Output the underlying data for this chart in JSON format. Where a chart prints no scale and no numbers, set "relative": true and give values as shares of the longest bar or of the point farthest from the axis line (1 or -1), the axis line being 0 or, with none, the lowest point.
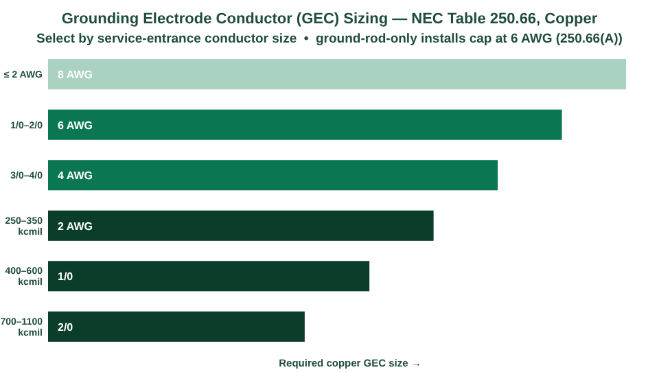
{
  "chart_data": {
    "type": "bar",
    "orientation": "horizontal",
    "relative": true,
    "title": "Grounding Electrode Conductor (GEC) Sizing — NEC Table 250.66, Copper",
    "subtitle": "Select by service-entrance conductor size  •  ground-rod-only installs cap at 6 AWG (250.66(A))",
    "xlabel": "Required copper GEC size →",
    "categories": [
      "≤ 2 AWG",
      "1/0–2/0",
      "3/0–4/0",
      "250–350 kcmil",
      "400–600 kcmil",
      "700–1100 kcmil"
    ],
    "values": [
      1,
      0.889,
      0.778,
      0.667,
      0.556,
      0.444
    ],
    "annotations": [
      "8 AWG",
      "6 AWG",
      "4 AWG",
      "2 AWG",
      "1/0",
      "2/0"
    ],
    "colors": [
      "#a9d2c0",
      "#0b7752",
      "#0b7752",
      "#0a3d2a",
      "#0a3d2a",
      "#0a3d2a"
    ]
  }
}
